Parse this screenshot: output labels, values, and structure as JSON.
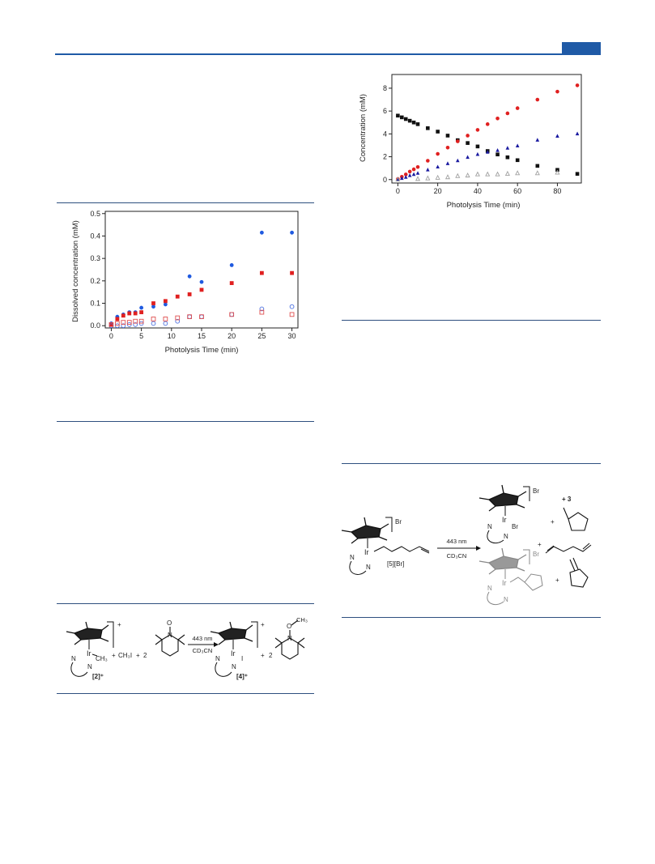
{
  "chart_data": [
    {
      "type": "scatter",
      "xlabel": "Photolysis Time (min)",
      "ylabel": "Dissolved concentration (mM)",
      "xlim": [
        -1,
        31
      ],
      "ylim": [
        -0.01,
        0.51
      ],
      "xticks": [
        0,
        5,
        10,
        15,
        20,
        25,
        30
      ],
      "yticks": [
        0.0,
        0.1,
        0.2,
        0.3,
        0.4,
        0.5
      ],
      "ytick_labels": [
        "0.0",
        "0.1",
        "0.2",
        "0.3",
        "0.4",
        "0.5"
      ],
      "grid": false,
      "legend": "none",
      "series": [
        {
          "marker": "circle-filled",
          "color": "#1f5ae0",
          "x": [
            0,
            1,
            2,
            3,
            4,
            5,
            7,
            9,
            13,
            15,
            20,
            25,
            30
          ],
          "y": [
            0.01,
            0.04,
            0.05,
            0.06,
            0.06,
            0.08,
            0.085,
            0.095,
            0.22,
            0.195,
            0.27,
            0.415,
            0.415
          ]
        },
        {
          "marker": "square-filled",
          "color": "#e02020",
          "x": [
            0,
            1,
            2,
            3,
            4,
            5,
            7,
            9,
            11,
            13,
            15,
            20,
            25,
            30
          ],
          "y": [
            0.005,
            0.03,
            0.045,
            0.055,
            0.055,
            0.06,
            0.1,
            0.11,
            0.13,
            0.14,
            0.16,
            0.19,
            0.235,
            0.235
          ]
        },
        {
          "marker": "circle-open",
          "color": "#4a6fe0",
          "x": [
            0,
            1,
            2,
            3,
            4,
            5,
            7,
            9,
            11,
            13,
            15,
            20,
            25,
            30
          ],
          "y": [
            0.0,
            0.0,
            0.0,
            0.005,
            0.005,
            0.01,
            0.01,
            0.01,
            0.02,
            0.04,
            0.04,
            0.05,
            0.075,
            0.085
          ]
        },
        {
          "marker": "square-open",
          "color": "#e05050",
          "x": [
            0,
            1,
            2,
            3,
            4,
            5,
            7,
            9,
            11,
            13,
            15,
            20,
            25,
            30
          ],
          "y": [
            0.005,
            0.01,
            0.015,
            0.015,
            0.02,
            0.02,
            0.03,
            0.03,
            0.035,
            0.04,
            0.04,
            0.05,
            0.06,
            0.05
          ]
        }
      ]
    },
    {
      "type": "scatter",
      "xlabel": "Photolysis Time (min)",
      "ylabel": "Concentration (mM)",
      "xlim": [
        -3,
        92
      ],
      "ylim": [
        -0.3,
        9.2
      ],
      "xticks": [
        0,
        20,
        40,
        60,
        80
      ],
      "yticks": [
        0,
        2,
        4,
        6,
        8
      ],
      "ytick_labels": [
        "0",
        "2",
        "4",
        "6",
        "8"
      ],
      "grid": false,
      "legend": "none",
      "series": [
        {
          "marker": "square-filled",
          "color": "#111111",
          "x": [
            0,
            2,
            4,
            6,
            8,
            10,
            15,
            20,
            25,
            30,
            35,
            40,
            45,
            50,
            55,
            60,
            70,
            80,
            90
          ],
          "y": [
            5.6,
            5.45,
            5.3,
            5.15,
            5.0,
            4.85,
            4.5,
            4.2,
            3.85,
            3.45,
            3.2,
            2.9,
            2.5,
            2.2,
            1.95,
            1.7,
            1.2,
            0.85,
            0.5
          ]
        },
        {
          "marker": "circle-filled",
          "color": "#e02020",
          "x": [
            0,
            2,
            4,
            6,
            8,
            10,
            15,
            20,
            25,
            30,
            35,
            40,
            45,
            50,
            55,
            60,
            70,
            80,
            90
          ],
          "y": [
            0.05,
            0.25,
            0.45,
            0.7,
            0.9,
            1.1,
            1.65,
            2.25,
            2.8,
            3.35,
            3.85,
            4.35,
            4.85,
            5.35,
            5.8,
            6.25,
            7.0,
            7.7,
            8.25
          ]
        },
        {
          "marker": "triangle-filled",
          "color": "#1a1aa0",
          "x": [
            0,
            2,
            4,
            6,
            8,
            10,
            15,
            20,
            25,
            30,
            35,
            40,
            45,
            50,
            55,
            60,
            70,
            80,
            90
          ],
          "y": [
            0.0,
            0.1,
            0.2,
            0.35,
            0.45,
            0.55,
            0.85,
            1.1,
            1.4,
            1.65,
            1.95,
            2.2,
            2.4,
            2.55,
            2.75,
            2.95,
            3.45,
            3.8,
            4.0
          ]
        },
        {
          "marker": "triangle-open",
          "color": "#a0a0a0",
          "x": [
            0,
            10,
            15,
            20,
            25,
            30,
            35,
            40,
            45,
            50,
            55,
            60,
            70,
            80
          ],
          "y": [
            0.0,
            0.05,
            0.1,
            0.15,
            0.2,
            0.3,
            0.35,
            0.45,
            0.45,
            0.45,
            0.5,
            0.55,
            0.55,
            0.6
          ]
        }
      ]
    }
  ],
  "schemes": {
    "scheme1": {
      "reagent_label": "[2]⁺",
      "methyl_label": "CH₃",
      "plus1": "+",
      "mei_label": "CH₃I",
      "plus2": "+",
      "coef_2": "2",
      "arrow_top": "443 nm",
      "arrow_bottom": "CD₃CN",
      "product_label": "[4]⁺",
      "iodo_label": "I",
      "plus3": "+",
      "coef_2b": "2",
      "ome_label": "CH₃",
      "o_label": "O",
      "n_label": "N",
      "charge": "+"
    },
    "scheme2": {
      "reagent_label": "[5][Br]",
      "br_label": "Br",
      "arrow_top": "443 nm",
      "arrow_bottom": "CD₃CN",
      "ir_label": "Ir",
      "n_label": "N",
      "plus_3": "+ 3",
      "plus": "+"
    }
  }
}
